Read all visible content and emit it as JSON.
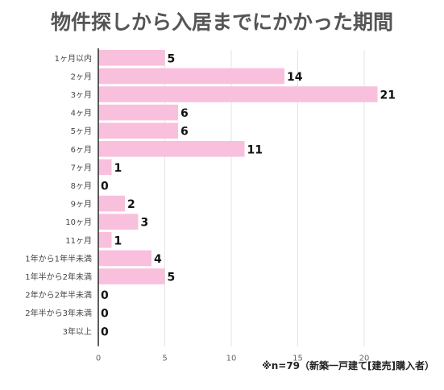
{
  "chart_data": {
    "type": "bar",
    "orientation": "horizontal",
    "title": "物件探しから入居までにかかった期間",
    "categories": [
      "1ヶ月以内",
      "2ヶ月",
      "3ヶ月",
      "4ヶ月",
      "5ヶ月",
      "6ヶ月",
      "7ヶ月",
      "8ヶ月",
      "9ヶ月",
      "10ヶ月",
      "11ヶ月",
      "1年から1年半未満",
      "1年半から2年未満",
      "2年から2年半未満",
      "2年半から3年未満",
      "3年以上"
    ],
    "values": [
      5,
      14,
      21,
      6,
      6,
      11,
      1,
      0,
      2,
      3,
      1,
      4,
      5,
      0,
      0,
      0
    ],
    "xlim": [
      0,
      22
    ],
    "xticks": [
      0,
      5,
      10,
      15,
      20
    ],
    "xlabel": "",
    "ylabel": "",
    "grid": true,
    "bar_color": "#f8c0dc",
    "note": "※n=79（新築一戸建て[建売]購入者）"
  }
}
